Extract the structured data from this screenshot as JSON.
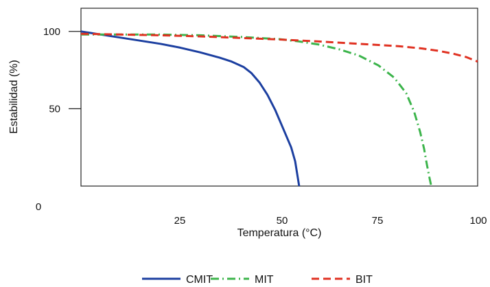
{
  "chart_data": {
    "type": "line",
    "xlabel": "Temperatura (°C)",
    "ylabel": "Estabilidad  (%)",
    "xlim": [
      0,
      100
    ],
    "ylim": [
      0,
      115
    ],
    "x_ticks": [
      "0",
      "25",
      "50",
      "75",
      "100"
    ],
    "y_ticks": [
      "50",
      "100"
    ],
    "grid": false,
    "legend_position": "bottom",
    "series": [
      {
        "name": "CMIT",
        "color": "#1c3fa0",
        "style": "solid",
        "x": [
          0,
          5,
          10,
          15,
          20,
          25,
          30,
          35,
          38,
          41,
          43,
          45,
          47,
          49,
          51,
          53,
          54,
          54.5,
          55
        ],
        "y": [
          100,
          98,
          96,
          94,
          92,
          89.5,
          86.5,
          83,
          80.5,
          77,
          73,
          67,
          59,
          49,
          37,
          25,
          16,
          8,
          0
        ]
      },
      {
        "name": "MIT",
        "color": "#3cb44b",
        "style": "dashdot",
        "x": [
          0,
          10,
          20,
          30,
          40,
          50,
          55,
          60,
          65,
          70,
          75,
          79,
          82,
          84,
          85.5,
          86.5,
          87.2,
          87.8,
          88.3
        ],
        "y": [
          98,
          98,
          98,
          97.5,
          96.5,
          95,
          93.5,
          91.5,
          88.5,
          84.5,
          78,
          70,
          60,
          48,
          35,
          24,
          14,
          6,
          0
        ]
      },
      {
        "name": "BIT",
        "color": "#e03121",
        "style": "dashed",
        "x": [
          0,
          10,
          20,
          30,
          40,
          50,
          60,
          70,
          80,
          86,
          90,
          94,
          97,
          100
        ],
        "y": [
          98.5,
          98,
          97.5,
          96.8,
          95.8,
          94.8,
          93.5,
          92,
          90.5,
          89,
          87.5,
          85.5,
          83.5,
          80.5
        ]
      }
    ]
  }
}
